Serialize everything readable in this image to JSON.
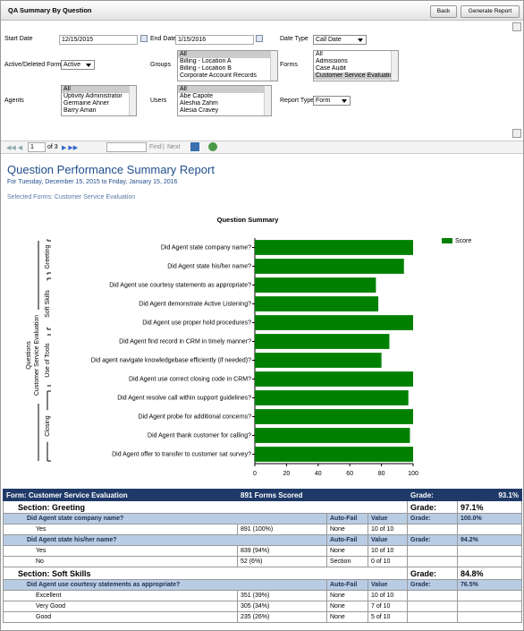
{
  "header": {
    "title": "QA Summary By Question",
    "buttons": [
      "Back",
      "Generate Report"
    ]
  },
  "filters": {
    "start_date": {
      "label": "Start Date",
      "value": "12/15/2015"
    },
    "end_date": {
      "label": "End Date",
      "value": "1/15/2016"
    },
    "date_type": {
      "label": "Date Type",
      "value": "Call Date"
    },
    "forms_state": {
      "label": "Active/Deleted Forms",
      "value": "Active"
    },
    "groups": {
      "label": "Groups",
      "items": [
        "All",
        "Billing - Location A",
        "Billing - Location B",
        "Corporate Account Records"
      ],
      "selected": 0
    },
    "forms": {
      "label": "Forms",
      "items": [
        "All",
        "Admissions",
        "Case Audit",
        "Customer Service Evaluation"
      ],
      "selected": 3
    },
    "agents": {
      "label": "Agents",
      "items": [
        "All",
        "Uptivity Administrator",
        "Germaine Ahner",
        "Barry Aman"
      ],
      "selected": 0
    },
    "users": {
      "label": "Users",
      "items": [
        "All",
        "Abe Capote",
        "Aleshia Zahm",
        "Alesia Cravey"
      ],
      "selected": 0
    },
    "report_type": {
      "label": "Report Type",
      "value": "Form"
    }
  },
  "toolbar": {
    "page": "1",
    "page_count": "of 3",
    "find": "Find",
    "separator": "|",
    "next": "Next"
  },
  "report": {
    "title": "Question Performance Summary Report",
    "subtitle": "For Tuesday, December 15, 2015 to Friday, January 15, 2016",
    "selected_forms": "Selected Forms: Customer Service Evaluation"
  },
  "chart_data": {
    "type": "bar",
    "orientation": "horizontal",
    "title": "Question Summary",
    "ylabel": "Questions",
    "group_label": "Customer Service Evaluation",
    "groups": [
      {
        "name": "Greeting",
        "count": 2
      },
      {
        "name": "Soft Skills",
        "count": 3
      },
      {
        "name": "Use of Tools",
        "count": 3
      },
      {
        "name": "Closing",
        "count": 4
      }
    ],
    "categories": [
      "Did Agent state company name?",
      "Did Agent state his/her name?",
      "Did Agent use courtesy statements as appropriate?",
      "Did Agent demonstrate Active Listening?",
      "Did Agent use proper hold procedures?",
      "Did Agent find record in CRM in timely manner?",
      "Did agent navigate knowledgebase efficiently (if needed)?",
      "Did Agent use correct closing code in CRM?",
      "Did Agent resolve call within support guidelines?",
      "Did Agent probe for additional concerns?",
      "Did Agent thank customer for calling?",
      "Did Agent offer to transfer to customer sat survey?"
    ],
    "series": [
      {
        "name": "Score",
        "color": "#008000",
        "values": [
          100,
          94.2,
          76.5,
          78,
          100,
          85,
          80,
          100,
          97,
          100,
          98,
          100
        ]
      }
    ],
    "xlim": [
      0,
      100
    ],
    "xticks": [
      0,
      20,
      40,
      60,
      80,
      100
    ],
    "legend": "upper right"
  },
  "report_table": {
    "form_label": "Form: Customer Service Evaluation",
    "forms_scored": "891 Forms Scored",
    "grade_label": "Grade:",
    "grade": "93.1%",
    "autofail_label": "Auto-Fail",
    "value_label": "Value",
    "sections": [
      {
        "title": "Section: Greeting",
        "grade": "97.1%",
        "questions": [
          {
            "text": "Did Agent state company name?",
            "grade": "100.0%",
            "answers": [
              {
                "answer": "Yes",
                "count": "891 (100%)",
                "autofail": "None",
                "value": "10 of 10"
              }
            ]
          },
          {
            "text": "Did Agent state his/her name?",
            "grade": "94.2%",
            "answers": [
              {
                "answer": "Yes",
                "count": "839 (94%)",
                "autofail": "None",
                "value": "10 of 10"
              },
              {
                "answer": "No",
                "count": "52 (6%)",
                "autofail": "Section",
                "value": "0 of 10"
              }
            ]
          }
        ]
      },
      {
        "title": "Section: Soft Skills",
        "grade": "84.8%",
        "questions": [
          {
            "text": "Did Agent use courtesy statements as appropriate?",
            "grade": "76.5%",
            "answers": [
              {
                "answer": "Excellent",
                "count": "351 (39%)",
                "autofail": "None",
                "value": "10 of 10"
              },
              {
                "answer": "Very Good",
                "count": "305 (34%)",
                "autofail": "None",
                "value": "7 of 10"
              },
              {
                "answer": "Good",
                "count": "235 (26%)",
                "autofail": "None",
                "value": "5 of 10"
              }
            ]
          }
        ]
      }
    ]
  }
}
